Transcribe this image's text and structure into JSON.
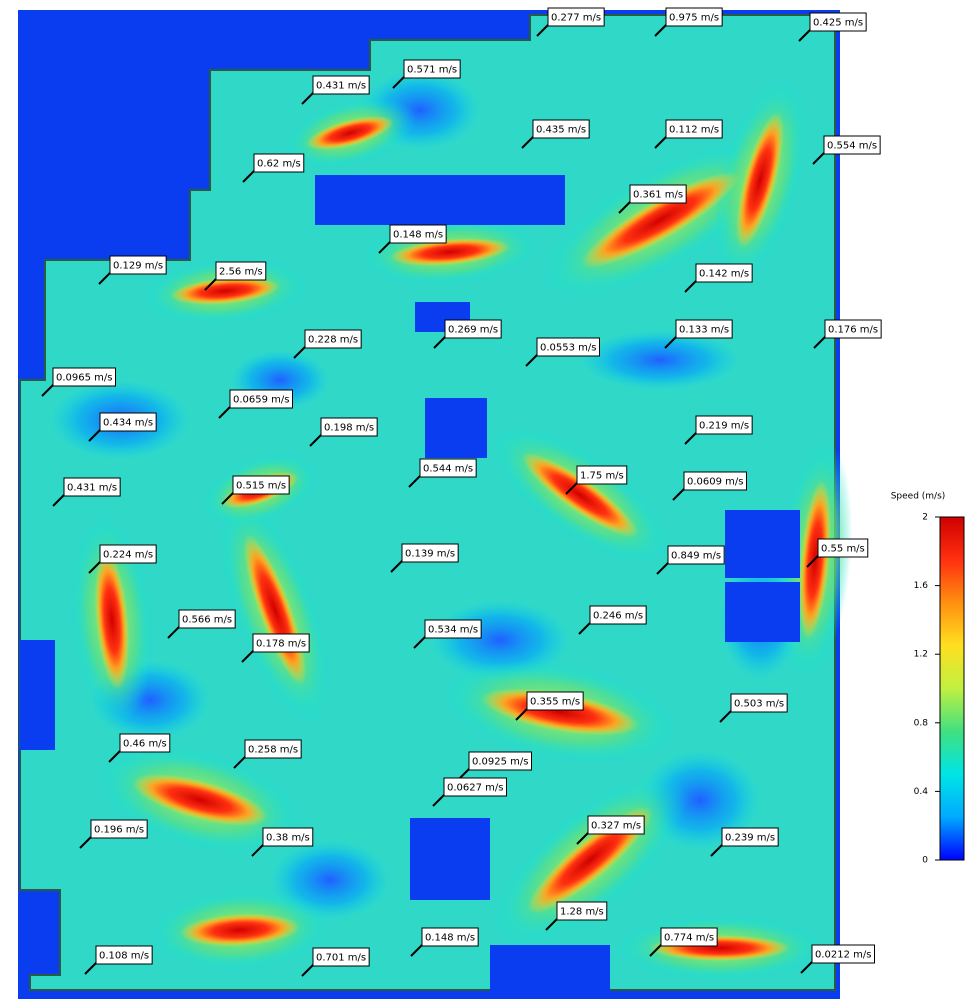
{
  "chart_data": {
    "type": "contour-plan",
    "colorbar": {
      "title": "Speed (m/s)",
      "ylim": [
        0,
        2
      ],
      "yticks": [
        0,
        0.4,
        0.8,
        1.2,
        1.6,
        2
      ],
      "colors": [
        "#0000ff",
        "#00aaff",
        "#00e5e5",
        "#40e080",
        "#c0f040",
        "#ffe020",
        "#ff9010",
        "#ff3010",
        "#d00000"
      ]
    },
    "probe_labels": [
      "0.277 m/s",
      "0.975 m/s",
      "0.425 m/s",
      "0.431 m/s",
      "0.571 m/s",
      "0.435 m/s",
      "0.112 m/s",
      "0.554 m/s",
      "0.62 m/s",
      "0.361 m/s",
      "0.148 m/s",
      "0.129 m/s",
      "2.56 m/s",
      "0.142 m/s",
      "0.269 m/s",
      "0.133 m/s",
      "0.176 m/s",
      "0.228 m/s",
      "0.0553 m/s",
      "0.0965 m/s",
      "0.0659 m/s",
      "0.434 m/s",
      "0.198 m/s",
      "0.219 m/s",
      "0.544 m/s",
      "1.75 m/s",
      "0.0609 m/s",
      "0.431 m/s",
      "0.515 m/s",
      "0.224 m/s",
      "0.139 m/s",
      "0.849 m/s",
      "0.55 m/s",
      "0.566 m/s",
      "0.246 m/s",
      "0.534 m/s",
      "0.178 m/s",
      "0.355 m/s",
      "0.503 m/s",
      "0.46 m/s",
      "0.258 m/s",
      "0.0925 m/s",
      "0.0627 m/s",
      "0.196 m/s",
      "0.38 m/s",
      "0.327 m/s",
      "0.239 m/s",
      "1.28 m/s",
      "0.148 m/s",
      "0.774 m/s",
      "0.108 m/s",
      "0.701 m/s",
      "0.0212 m/s"
    ]
  }
}
